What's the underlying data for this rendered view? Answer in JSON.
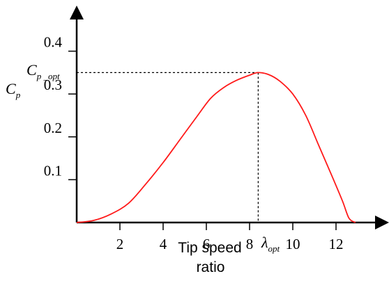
{
  "chart_data": {
    "type": "line",
    "xlabel_line1": "Tip speed",
    "xlabel_line2": "ratio",
    "ylabel": "C",
    "ylabel_sub": "p",
    "opt_label": "C",
    "opt_label_sub": "p _opt",
    "lambda_label": "λ",
    "lambda_sub": "opt",
    "xlim": [
      0,
      14.4
    ],
    "ylim": [
      0,
      0.45
    ],
    "x_ticks": [
      2,
      4,
      6,
      8,
      10,
      12
    ],
    "x_tick_labels": [
      "2",
      "4",
      "6",
      "8",
      "10",
      "12"
    ],
    "y_ticks": [
      0.1,
      0.2,
      0.3,
      0.4
    ],
    "y_tick_labels": [
      "0.1",
      "0.2",
      "0.3",
      "0.4"
    ],
    "optimum": {
      "x": 8.4,
      "y": 0.35
    },
    "series": [
      {
        "color": "#ff1a1a",
        "x": [
          0,
          0.8,
          1.6,
          2.4,
          3.2,
          4.0,
          4.8,
          5.6,
          6.2,
          6.8,
          7.4,
          8.0,
          8.4,
          8.9,
          9.4,
          10.0,
          10.6,
          11.2,
          11.8,
          12.3,
          12.6,
          12.9
        ],
        "y": [
          0,
          0.005,
          0.02,
          0.045,
          0.09,
          0.14,
          0.195,
          0.25,
          0.29,
          0.315,
          0.332,
          0.344,
          0.35,
          0.345,
          0.33,
          0.3,
          0.25,
          0.18,
          0.11,
          0.05,
          0.01,
          0
        ]
      }
    ]
  }
}
